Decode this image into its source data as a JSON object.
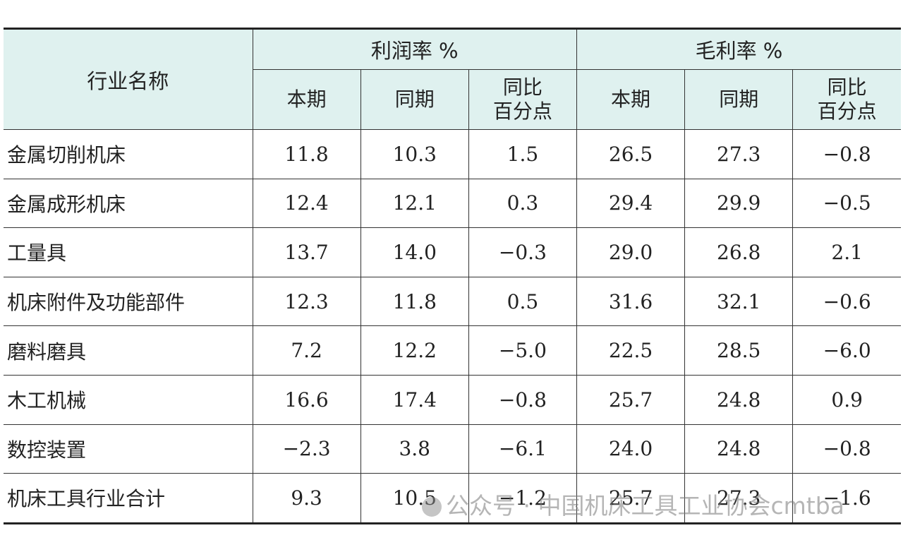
{
  "table": {
    "header": {
      "name": "行业名称",
      "groups": [
        "利润率 %",
        "毛利率 %"
      ],
      "subs": [
        [
          "本期"
        ],
        [
          "同期"
        ],
        [
          "同比",
          "百分点"
        ],
        [
          "本期"
        ],
        [
          "同期"
        ],
        [
          "同比",
          "百分点"
        ]
      ]
    },
    "rows": [
      [
        "金属切削机床",
        "11.8",
        "10.3",
        "1.5",
        "26.5",
        "27.3",
        "−0.8"
      ],
      [
        "金属成形机床",
        "12.4",
        "12.1",
        "0.3",
        "29.4",
        "29.9",
        "−0.5"
      ],
      [
        "工量具",
        "13.7",
        "14.0",
        "−0.3",
        "29.0",
        "26.8",
        "2.1"
      ],
      [
        "机床附件及功能部件",
        "12.3",
        "11.8",
        "0.5",
        "31.6",
        "32.1",
        "−0.6"
      ],
      [
        "磨料磨具",
        "7.2",
        "12.2",
        "−5.0",
        "22.5",
        "28.5",
        "−6.0"
      ],
      [
        "木工机械",
        "16.6",
        "17.4",
        "−0.8",
        "25.7",
        "24.8",
        "0.9"
      ],
      [
        "数控装置",
        "−2.3",
        "3.8",
        "−6.1",
        "24.0",
        "24.8",
        "−0.8"
      ],
      [
        "机床工具行业合计",
        "9.3",
        "10.5",
        "−1.2",
        "25.7",
        "27.3",
        "−1.6"
      ]
    ]
  },
  "watermark": "公众号 · 中国机床工具工业协会cmtba"
}
